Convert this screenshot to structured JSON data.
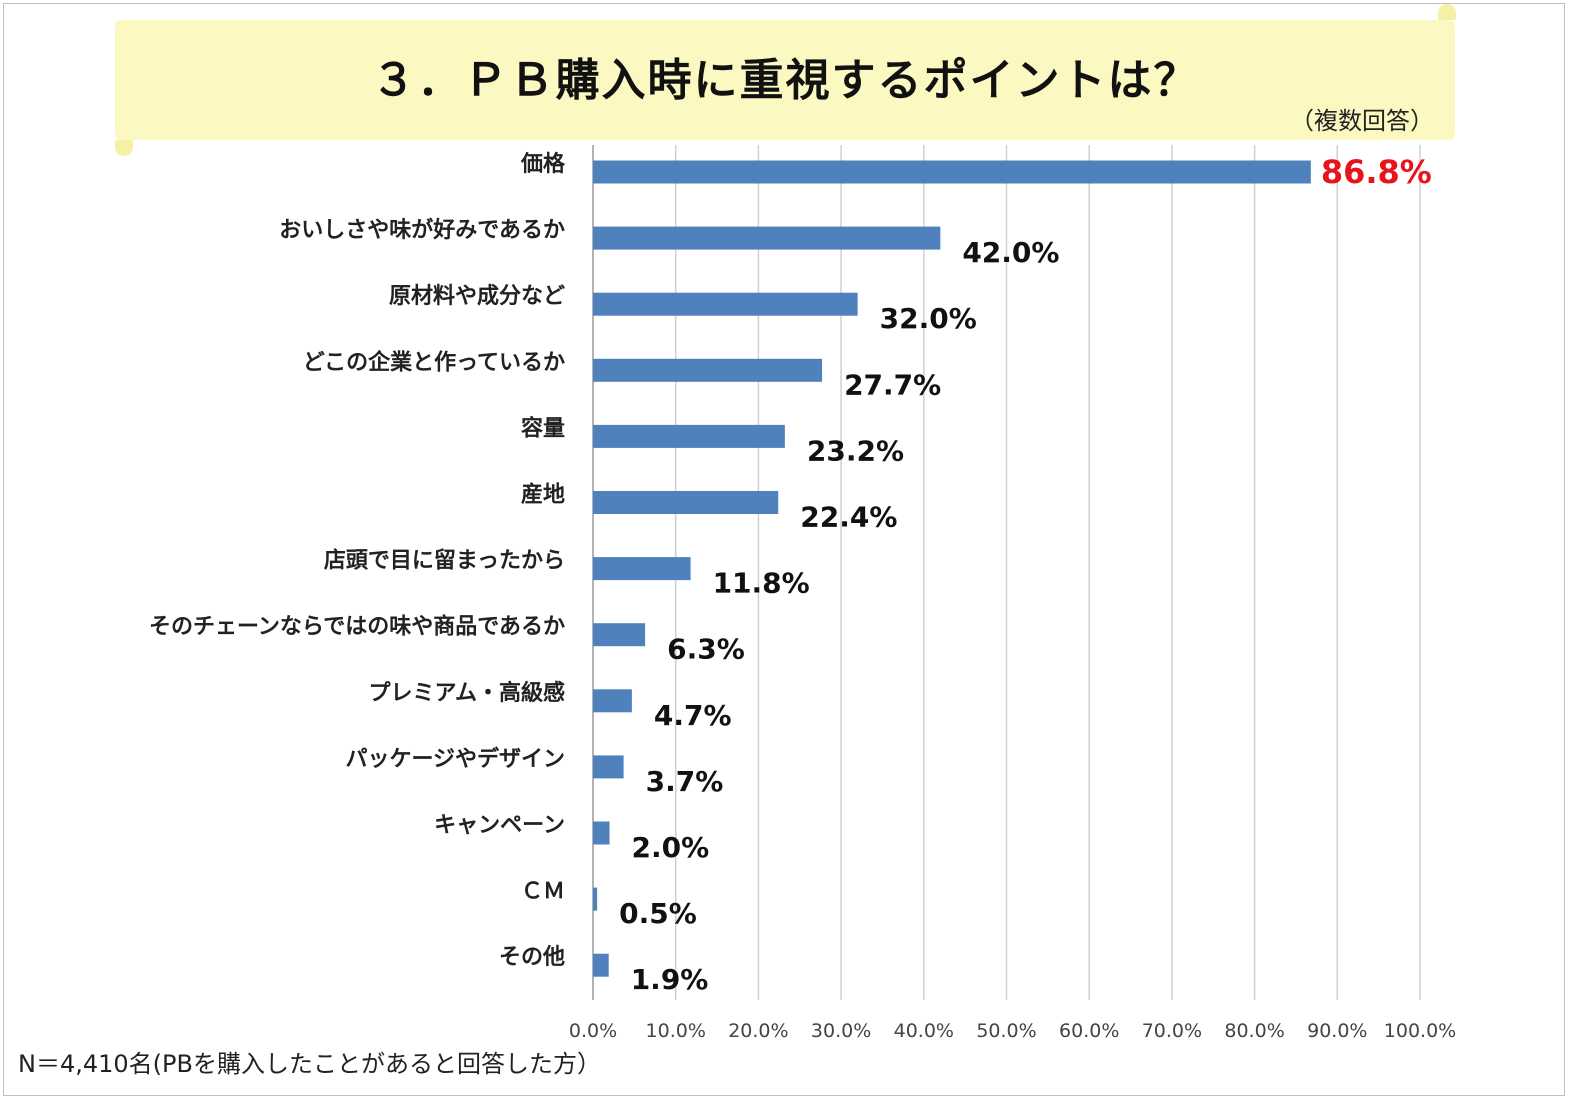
{
  "header": {
    "title": "３．ＰＢ購入時に重視するポイントは？",
    "subtitle": "（複数回答）"
  },
  "footer": {
    "note": "N＝4,410名(PBを購入したことがあると回答した方）"
  },
  "colors": {
    "bar": "#4f81bd",
    "highlight_value": "#e8141b",
    "value": "#111111",
    "banner": "#fbf8c2",
    "grid": "#d0d0d0"
  },
  "chart_data": {
    "type": "bar",
    "orientation": "horizontal",
    "title": "３．ＰＢ購入時に重視するポイントは？",
    "subtitle": "（複数回答）",
    "categories": [
      "価格",
      "おいしさや味が好みであるか",
      "原材料や成分など",
      "どこの企業と作っているか",
      "容量",
      "産地",
      "店頭で目に留まったから",
      "そのチェーンならではの味や商品であるか",
      "プレミアム・高級感",
      "パッケージやデザイン",
      "キャンペーン",
      "ＣＭ",
      "その他"
    ],
    "values": [
      86.8,
      42.0,
      32.0,
      27.7,
      23.2,
      22.4,
      11.8,
      6.3,
      4.7,
      3.7,
      2.0,
      0.5,
      1.9
    ],
    "value_labels": [
      "86.8%",
      "42.0%",
      "32.0%",
      "27.7%",
      "23.2%",
      "22.4%",
      "11.8%",
      "6.3%",
      "4.7%",
      "3.7%",
      "2.0%",
      "0.5%",
      "1.9%"
    ],
    "highlight_index": 0,
    "xlim": [
      0,
      100
    ],
    "xticks": [
      "0.0%",
      "10.0%",
      "20.0%",
      "30.0%",
      "40.0%",
      "50.0%",
      "60.0%",
      "70.0%",
      "80.0%",
      "90.0%",
      "100.0%"
    ],
    "grid": true,
    "legend": "none",
    "xlabel": "",
    "ylabel": ""
  }
}
